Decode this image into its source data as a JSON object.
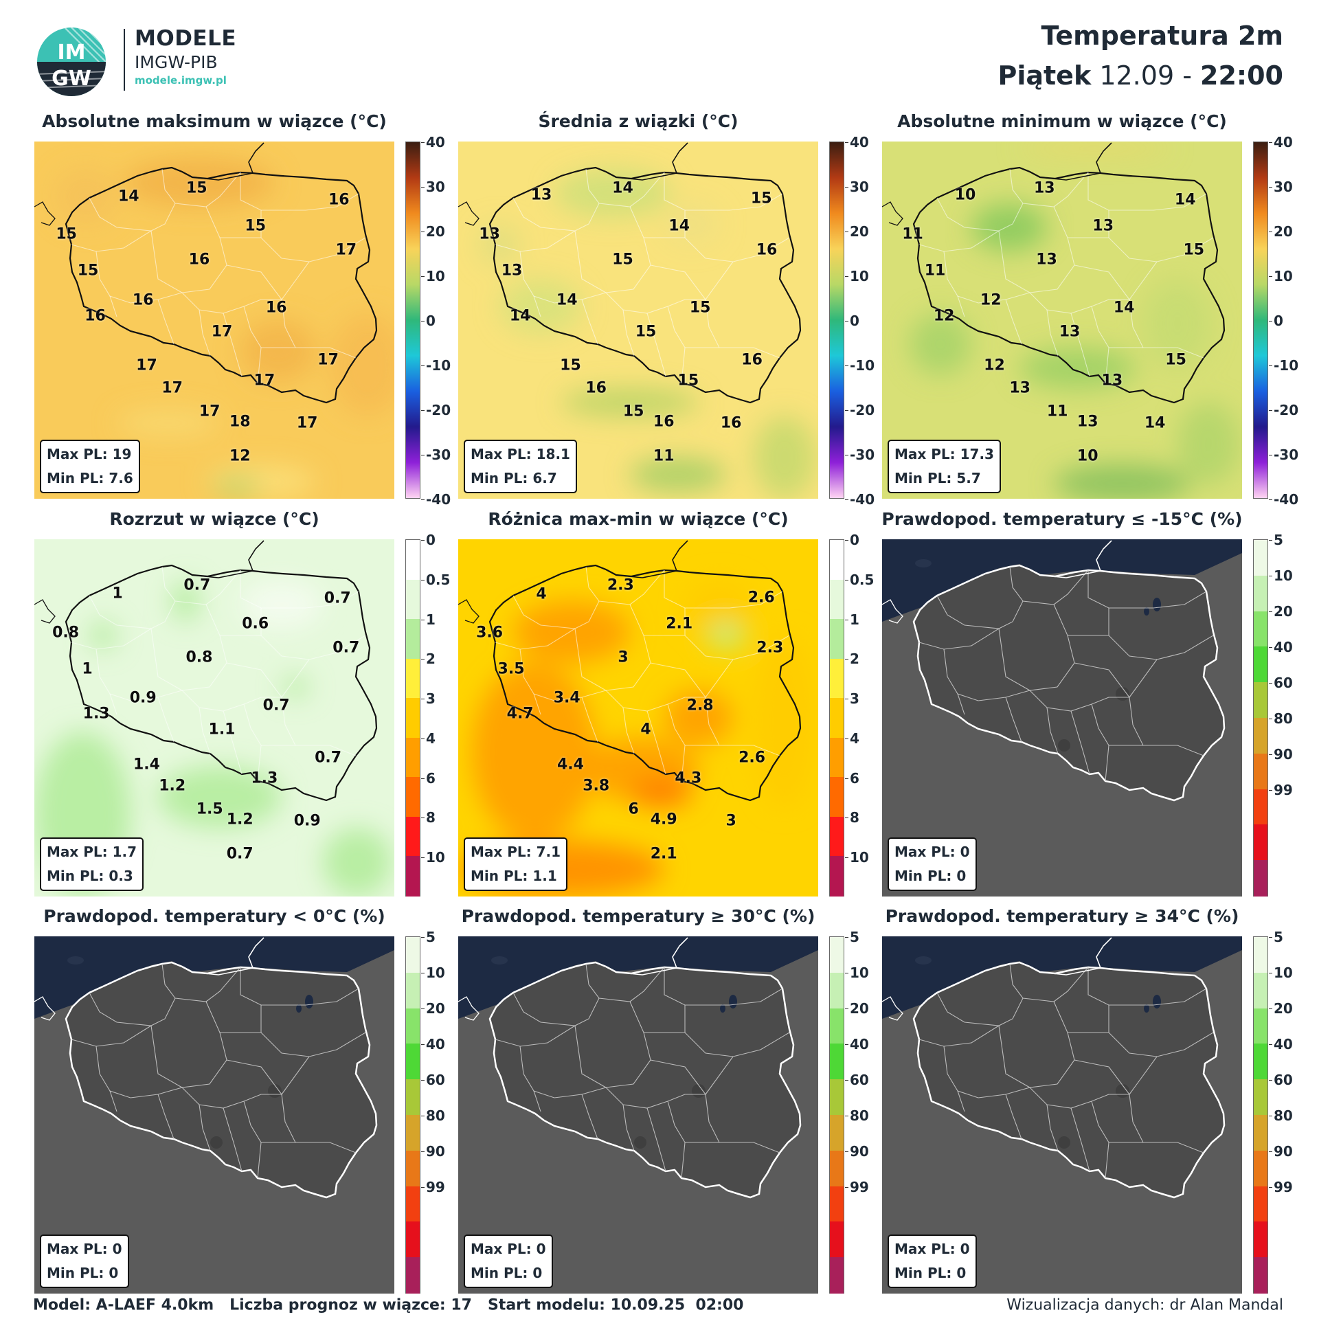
{
  "header": {
    "logo_text_top": "IM",
    "logo_text_bottom": "GW",
    "brand_line1": "MODELE",
    "brand_line2": "IMGW-PIB",
    "brand_url": "modele.imgw.pl",
    "title": "Temperatura 2m",
    "day": "Piątek",
    "date": "12.09",
    "separator": "-",
    "time": "22:00"
  },
  "colorbars": {
    "temperature": {
      "ticks": [
        "40",
        "30",
        "20",
        "10",
        "0",
        "-10",
        "-20",
        "-30",
        "-40"
      ],
      "colors": [
        "#3b1e12",
        "#b23a14",
        "#f08a1e",
        "#f8d35a",
        "#b8d866",
        "#2fb87a",
        "#1ec8d8",
        "#1a60e0",
        "#231a8c",
        "#8e20d8",
        "#ffd4f2"
      ]
    },
    "spread": {
      "ticks": [
        "0",
        "0.5",
        "1",
        "2",
        "3",
        "4",
        "6",
        "8",
        "10"
      ],
      "colors": [
        "#ffffff",
        "#e6f9dc",
        "#b4ec9c",
        "#ffef3a",
        "#ffcc00",
        "#ff9e00",
        "#ff6a00",
        "#ff1a1a",
        "#b41650"
      ]
    },
    "probability": {
      "ticks": [
        "5",
        "10",
        "20",
        "40",
        "60",
        "80",
        "90",
        "99"
      ],
      "colors": [
        "#eef9e6",
        "#c6f0b4",
        "#88e36a",
        "#4ed836",
        "#a8c838",
        "#d6a42a",
        "#e87818",
        "#f24010",
        "#e6101c",
        "#a8205a"
      ]
    }
  },
  "panels": [
    {
      "title": "Absolutne maksimum w wiązce (°C)",
      "colorbar": "temperature",
      "theme": "warm",
      "stats": {
        "max": "Max PL: 19",
        "min": "Min PL: 7.6"
      },
      "labels": [
        {
          "t": "14",
          "x": 26.2,
          "y": 15.4
        },
        {
          "t": "15",
          "x": 45.1,
          "y": 13.1
        },
        {
          "t": "16",
          "x": 84.6,
          "y": 16.3
        },
        {
          "t": "15",
          "x": 8.9,
          "y": 26.0
        },
        {
          "t": "15",
          "x": 61.4,
          "y": 23.7
        },
        {
          "t": "17",
          "x": 86.6,
          "y": 30.4
        },
        {
          "t": "15",
          "x": 14.9,
          "y": 36.2
        },
        {
          "t": "16",
          "x": 45.8,
          "y": 33.1
        },
        {
          "t": "16",
          "x": 30.2,
          "y": 44.4
        },
        {
          "t": "16",
          "x": 16.9,
          "y": 48.8
        },
        {
          "t": "16",
          "x": 67.2,
          "y": 46.5
        },
        {
          "t": "17",
          "x": 52.1,
          "y": 53.3
        },
        {
          "t": "17",
          "x": 31.2,
          "y": 62.7
        },
        {
          "t": "17",
          "x": 81.6,
          "y": 61.2
        },
        {
          "t": "17",
          "x": 38.3,
          "y": 69.0
        },
        {
          "t": "17",
          "x": 63.9,
          "y": 66.9
        },
        {
          "t": "17",
          "x": 48.7,
          "y": 75.6
        },
        {
          "t": "18",
          "x": 57.1,
          "y": 78.4
        },
        {
          "t": "17",
          "x": 75.8,
          "y": 78.8
        },
        {
          "t": "12",
          "x": 57.1,
          "y": 88.1
        }
      ]
    },
    {
      "title": "Średnia z wiązki (°C)",
      "colorbar": "temperature",
      "theme": "mild",
      "stats": {
        "max": "Max PL: 18.1",
        "min": "Min PL: 6.7"
      },
      "labels": [
        {
          "t": "13",
          "x": 23.1,
          "y": 15.0
        },
        {
          "t": "14",
          "x": 45.7,
          "y": 13.1
        },
        {
          "t": "15",
          "x": 84.2,
          "y": 16.0
        },
        {
          "t": "13",
          "x": 8.7,
          "y": 26.0
        },
        {
          "t": "14",
          "x": 61.4,
          "y": 23.7
        },
        {
          "t": "16",
          "x": 85.7,
          "y": 30.4
        },
        {
          "t": "13",
          "x": 14.9,
          "y": 36.2
        },
        {
          "t": "15",
          "x": 45.7,
          "y": 33.1
        },
        {
          "t": "14",
          "x": 30.2,
          "y": 44.4
        },
        {
          "t": "14",
          "x": 17.2,
          "y": 48.8
        },
        {
          "t": "15",
          "x": 67.2,
          "y": 46.5
        },
        {
          "t": "15",
          "x": 52.1,
          "y": 53.3
        },
        {
          "t": "15",
          "x": 31.2,
          "y": 62.7
        },
        {
          "t": "16",
          "x": 81.6,
          "y": 61.2
        },
        {
          "t": "16",
          "x": 38.3,
          "y": 69.0
        },
        {
          "t": "15",
          "x": 63.9,
          "y": 66.9
        },
        {
          "t": "15",
          "x": 48.7,
          "y": 75.6
        },
        {
          "t": "16",
          "x": 57.1,
          "y": 78.4
        },
        {
          "t": "16",
          "x": 75.8,
          "y": 78.8
        },
        {
          "t": "11",
          "x": 57.1,
          "y": 88.1
        }
      ]
    },
    {
      "title": "Absolutne minimum w wiązce (°C)",
      "colorbar": "temperature",
      "theme": "cool",
      "stats": {
        "max": "Max PL: 17.3",
        "min": "Min PL: 5.7"
      },
      "labels": [
        {
          "t": "10",
          "x": 23.1,
          "y": 15.0
        },
        {
          "t": "13",
          "x": 45.1,
          "y": 13.1
        },
        {
          "t": "14",
          "x": 84.2,
          "y": 16.3
        },
        {
          "t": "11",
          "x": 8.5,
          "y": 26.0
        },
        {
          "t": "13",
          "x": 61.4,
          "y": 23.7
        },
        {
          "t": "15",
          "x": 86.6,
          "y": 30.4
        },
        {
          "t": "11",
          "x": 14.7,
          "y": 36.2
        },
        {
          "t": "13",
          "x": 45.7,
          "y": 33.1
        },
        {
          "t": "12",
          "x": 30.2,
          "y": 44.4
        },
        {
          "t": "12",
          "x": 17.2,
          "y": 48.8
        },
        {
          "t": "14",
          "x": 67.2,
          "y": 46.5
        },
        {
          "t": "13",
          "x": 52.1,
          "y": 53.3
        },
        {
          "t": "12",
          "x": 31.2,
          "y": 62.7
        },
        {
          "t": "15",
          "x": 81.6,
          "y": 61.2
        },
        {
          "t": "13",
          "x": 38.3,
          "y": 69.0
        },
        {
          "t": "13",
          "x": 63.9,
          "y": 66.9
        },
        {
          "t": "11",
          "x": 48.7,
          "y": 75.6
        },
        {
          "t": "13",
          "x": 57.1,
          "y": 78.4
        },
        {
          "t": "14",
          "x": 75.8,
          "y": 78.8
        },
        {
          "t": "10",
          "x": 57.1,
          "y": 88.1
        }
      ]
    },
    {
      "title": "Rozrzut w wiązce (°C)",
      "colorbar": "spread",
      "theme": "spread",
      "stats": {
        "max": "Max PL: 1.7",
        "min": "Min PL: 0.3"
      },
      "labels": [
        {
          "t": "1",
          "x": 23.1,
          "y": 15.2
        },
        {
          "t": "0.7",
          "x": 45.2,
          "y": 12.9
        },
        {
          "t": "0.7",
          "x": 84.2,
          "y": 16.5
        },
        {
          "t": "0.8",
          "x": 8.7,
          "y": 26.2
        },
        {
          "t": "0.6",
          "x": 61.4,
          "y": 23.7
        },
        {
          "t": "0.7",
          "x": 86.6,
          "y": 30.4
        },
        {
          "t": "1",
          "x": 14.7,
          "y": 36.3
        },
        {
          "t": "0.8",
          "x": 45.8,
          "y": 33.1
        },
        {
          "t": "0.9",
          "x": 30.2,
          "y": 44.4
        },
        {
          "t": "1.3",
          "x": 17.2,
          "y": 48.8
        },
        {
          "t": "0.7",
          "x": 67.2,
          "y": 46.5
        },
        {
          "t": "1.1",
          "x": 52.1,
          "y": 53.3
        },
        {
          "t": "1.4",
          "x": 31.2,
          "y": 63.0
        },
        {
          "t": "0.7",
          "x": 81.6,
          "y": 61.2
        },
        {
          "t": "1.2",
          "x": 38.3,
          "y": 69.0
        },
        {
          "t": "1.3",
          "x": 63.9,
          "y": 66.9
        },
        {
          "t": "1.5",
          "x": 48.7,
          "y": 75.6
        },
        {
          "t": "1.2",
          "x": 57.1,
          "y": 78.4
        },
        {
          "t": "0.9",
          "x": 75.8,
          "y": 78.8
        },
        {
          "t": "0.7",
          "x": 57.1,
          "y": 88.1
        }
      ]
    },
    {
      "title": "Różnica max-min w wiązce (°C)",
      "colorbar": "spread",
      "theme": "range",
      "stats": {
        "max": "Max PL: 7.1",
        "min": "Min PL: 1.1"
      },
      "labels": [
        {
          "t": "4",
          "x": 23.1,
          "y": 15.4
        },
        {
          "t": "2.3",
          "x": 45.1,
          "y": 12.9
        },
        {
          "t": "2.6",
          "x": 84.2,
          "y": 16.3
        },
        {
          "t": "3.6",
          "x": 8.7,
          "y": 26.2
        },
        {
          "t": "2.1",
          "x": 61.4,
          "y": 23.7
        },
        {
          "t": "2.3",
          "x": 86.6,
          "y": 30.4
        },
        {
          "t": "3.5",
          "x": 14.7,
          "y": 36.3
        },
        {
          "t": "3",
          "x": 45.8,
          "y": 33.1
        },
        {
          "t": "3.4",
          "x": 30.2,
          "y": 44.4
        },
        {
          "t": "4.7",
          "x": 17.2,
          "y": 48.8
        },
        {
          "t": "2.8",
          "x": 67.2,
          "y": 46.5
        },
        {
          "t": "4",
          "x": 52.1,
          "y": 53.3
        },
        {
          "t": "4.4",
          "x": 31.2,
          "y": 63.0
        },
        {
          "t": "2.6",
          "x": 81.6,
          "y": 61.2
        },
        {
          "t": "3.8",
          "x": 38.3,
          "y": 69.0
        },
        {
          "t": "4.3",
          "x": 63.9,
          "y": 66.9
        },
        {
          "t": "6",
          "x": 48.7,
          "y": 75.6
        },
        {
          "t": "4.9",
          "x": 57.1,
          "y": 78.4
        },
        {
          "t": "3",
          "x": 75.8,
          "y": 78.8
        },
        {
          "t": "2.1",
          "x": 57.1,
          "y": 88.1
        }
      ]
    },
    {
      "title": "Prawdopod. temperatury ≤ -15°C (%)",
      "colorbar": "probability",
      "theme": "gray",
      "stats": {
        "max": "Max PL: 0",
        "min": "Min PL: 0"
      },
      "labels": []
    },
    {
      "title": "Prawdopod. temperatury < 0°C (%)",
      "colorbar": "probability",
      "theme": "gray",
      "stats": {
        "max": "Max PL: 0",
        "min": "Min PL: 0"
      },
      "labels": []
    },
    {
      "title": "Prawdopod. temperatury ≥ 30°C (%)",
      "colorbar": "probability",
      "theme": "gray",
      "stats": {
        "max": "Max PL: 0",
        "min": "Min PL: 0"
      },
      "labels": []
    },
    {
      "title": "Prawdopod. temperatury ≥ 34°C (%)",
      "colorbar": "probability",
      "theme": "gray",
      "stats": {
        "max": "Max PL: 0",
        "min": "Min PL: 0"
      },
      "labels": []
    }
  ],
  "footer": {
    "left": "Model: A-LAEF 4.0km   Liczba prognoz w wiązce: 17   Start modelu: 10.09.25  02:00",
    "right": "Wizualizacja danych: dr Alan Mandal"
  }
}
